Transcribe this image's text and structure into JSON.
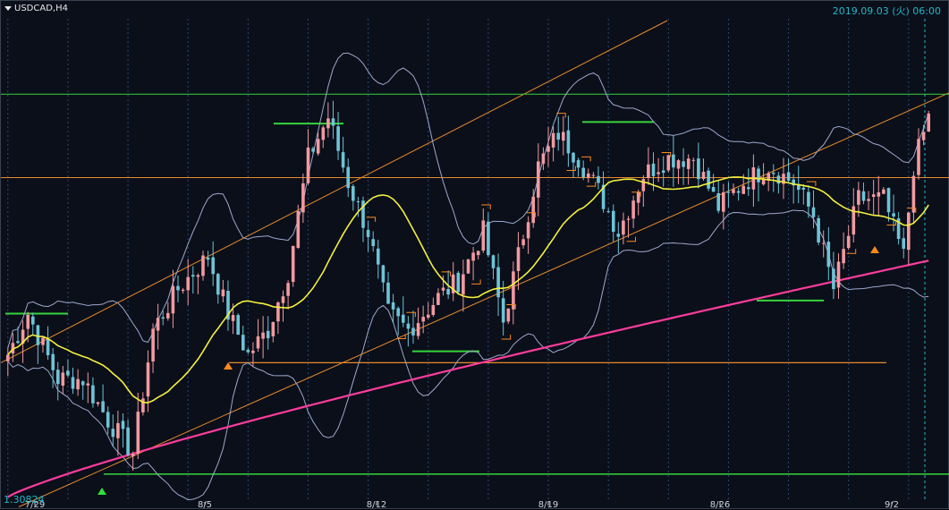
{
  "header": {
    "symbol": "USDCAD,H4",
    "timestamp": "2019.09.03 (火) 06:00",
    "price_label": "1.30824"
  },
  "colors": {
    "background": "#0a0f1a",
    "bull": "#f29aa0",
    "bear": "#6ec4d6",
    "ma_fast": "#f5f03c",
    "ma_slow": "#ff3c9c",
    "bollinger": "#9fa8cc",
    "channel": "#e88a2a",
    "level_orange": "#e88a2a",
    "level_green": "#37d43a",
    "grid": "#2a4a78",
    "fractal_up": "#2ede3a",
    "fractal_down": "#ff8a1a"
  },
  "chart_data": {
    "type": "candlestick",
    "symbol": "USDCAD",
    "timeframe": "H4",
    "x_tick_labels": [
      "7/29",
      "8/5",
      "8/12",
      "8/19",
      "8/26",
      "9/2"
    ],
    "ylim": [
      1.3075,
      1.337
    ],
    "overlays": [
      "Bollinger Bands",
      "Moving average (yellow)",
      "Moving average (magenta)",
      "Regression channel",
      "Horizontal levels",
      "Fractals"
    ]
  }
}
